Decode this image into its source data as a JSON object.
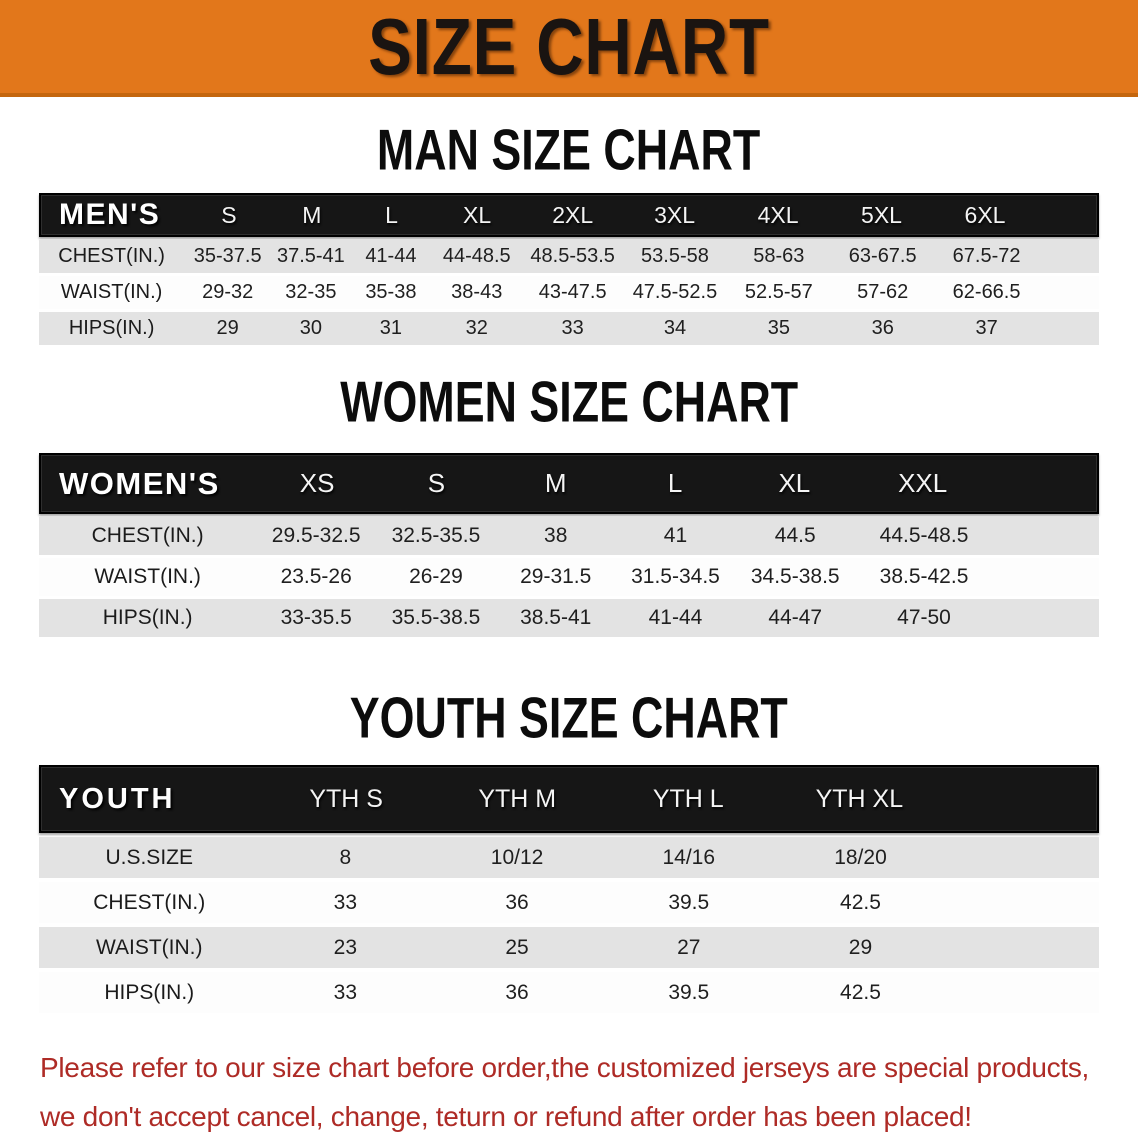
{
  "colors": {
    "banner_orange": "#E2771B",
    "banner_border": "#C4660E",
    "header_black": "#161616",
    "row_gray": "#E3E3E3",
    "note_red": "#AE2B26"
  },
  "banner": {
    "title": "SIZE CHART"
  },
  "sections": [
    {
      "heading": "MAN SIZE CHART",
      "table": {
        "header_label": "MEN'S",
        "columns": [
          "S",
          "M",
          "L",
          "XL",
          "2XL",
          "3XL",
          "4XL",
          "5XL",
          "6XL"
        ],
        "rows": [
          {
            "label": "CHEST(IN.)",
            "values": [
              "35-37.5",
              "37.5-41",
              "41-44",
              "44-48.5",
              "48.5-53.5",
              "53.5-58",
              "58-63",
              "63-67.5",
              "67.5-72"
            ]
          },
          {
            "label": "WAIST(IN.)",
            "values": [
              "29-32",
              "32-35",
              "35-38",
              "38-43",
              "43-47.5",
              "47.5-52.5",
              "52.5-57",
              "57-62",
              "62-66.5"
            ]
          },
          {
            "label": "HIPS(IN.)",
            "values": [
              "29",
              "30",
              "31",
              "32",
              "33",
              "34",
              "35",
              "36",
              "37"
            ]
          }
        ]
      }
    },
    {
      "heading": "WOMEN SIZE CHART",
      "table": {
        "header_label": "WOMEN'S",
        "columns": [
          "XS",
          "S",
          "M",
          "L",
          "XL",
          "XXL"
        ],
        "rows": [
          {
            "label": "CHEST(IN.)",
            "values": [
              "29.5-32.5",
              "32.5-35.5",
              "38",
              "41",
              "44.5",
              "44.5-48.5"
            ]
          },
          {
            "label": "WAIST(IN.)",
            "values": [
              "23.5-26",
              "26-29",
              "29-31.5",
              "31.5-34.5",
              "34.5-38.5",
              "38.5-42.5"
            ]
          },
          {
            "label": "HIPS(IN.)",
            "values": [
              "33-35.5",
              "35.5-38.5",
              "38.5-41",
              "41-44",
              "44-47",
              "47-50"
            ]
          }
        ]
      }
    },
    {
      "heading": "YOUTH SIZE CHART",
      "table": {
        "header_label": "YOUTH",
        "columns": [
          "YTH S",
          "YTH M",
          "YTH L",
          "YTH XL"
        ],
        "rows": [
          {
            "label": "U.S.SIZE",
            "values": [
              "8",
              "10/12",
              "14/16",
              "18/20"
            ]
          },
          {
            "label": "CHEST(IN.)",
            "values": [
              "33",
              "36",
              "39.5",
              "42.5"
            ]
          },
          {
            "label": "WAIST(IN.)",
            "values": [
              "23",
              "25",
              "27",
              "29"
            ]
          },
          {
            "label": "HIPS(IN.)",
            "values": [
              "33",
              "36",
              "39.5",
              "42.5"
            ]
          }
        ]
      }
    }
  ],
  "footer_note": {
    "lines": [
      "Please refer to our size chart before order,the customized jerseys are special products,",
      "we don't accept cancel, change, teturn or refund after order has been placed!"
    ]
  }
}
